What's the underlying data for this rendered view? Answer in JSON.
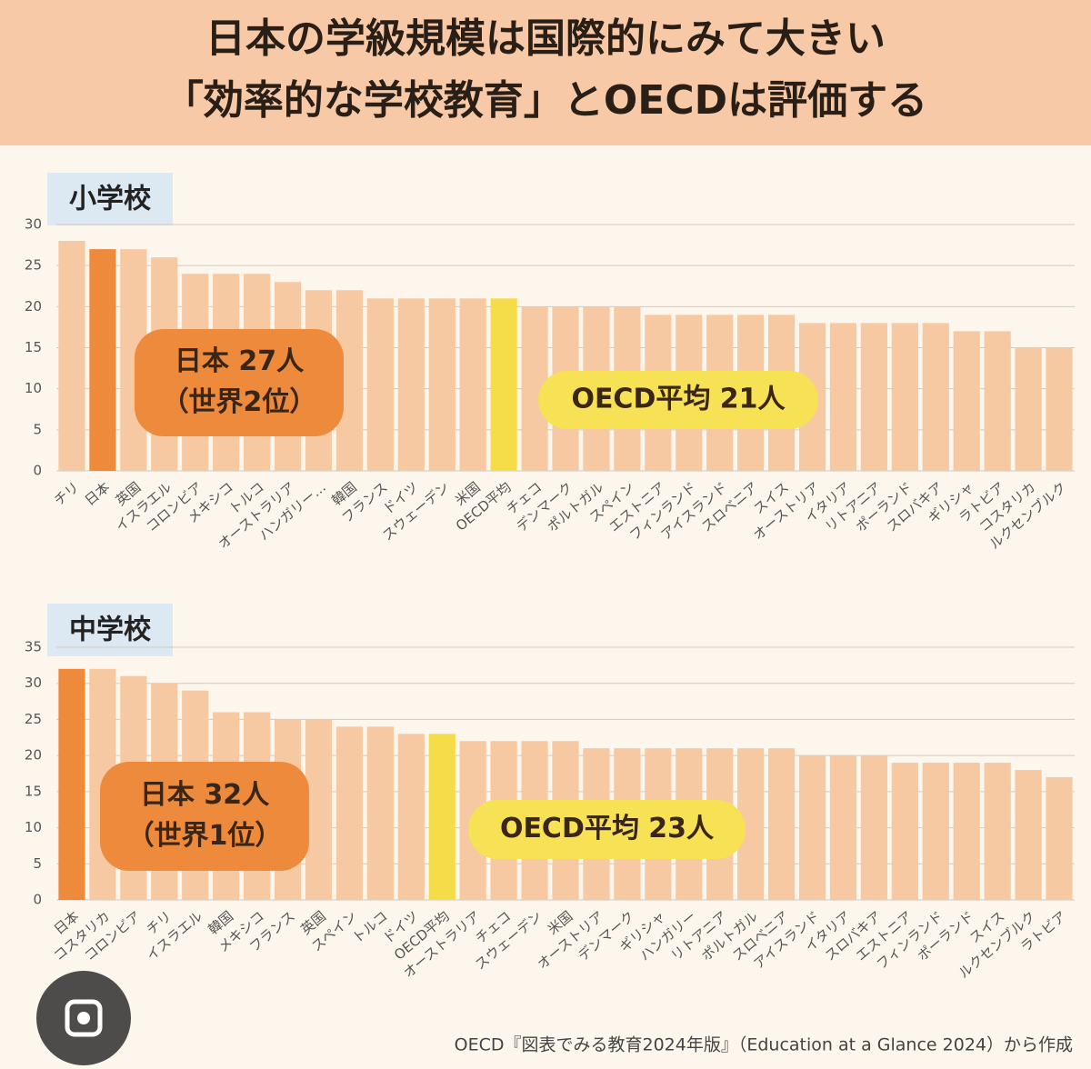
{
  "header": {
    "title_lines": [
      "日本の学級規模は国際的にみて大きい",
      "「効率的な学校教育」とOECDは評価する"
    ]
  },
  "footer": {
    "source": "OECD『図表でみる教育2024年版』（Education at a Glance 2024）から作成"
  },
  "chart_data": [
    {
      "type": "bar",
      "title": "小学校",
      "categories": [
        "チリ",
        "日本",
        "英国",
        "イスラエル",
        "コロンビア",
        "メキシコ",
        "トルコ",
        "オーストラリア",
        "ハンガリー…",
        "韓国",
        "フランス",
        "ドイツ",
        "スウェーデン",
        "米国",
        "OECD平均",
        "チェコ",
        "デンマーク",
        "ポルトガル",
        "スペイン",
        "エストニア",
        "フィンランド",
        "アイスランド",
        "スロベニア",
        "スイス",
        "オーストリア",
        "イタリア",
        "リトアニア",
        "ポーランド",
        "スロバキア",
        "ギリシャ",
        "ラトビア",
        "コスタリカ",
        "ルクセンブルク"
      ],
      "values": [
        28,
        27,
        27,
        26,
        24,
        24,
        24,
        23,
        22,
        22,
        21,
        21,
        21,
        21,
        21,
        20,
        20,
        20,
        20,
        19,
        19,
        19,
        19,
        19,
        18,
        18,
        18,
        18,
        18,
        17,
        17,
        15,
        15
      ],
      "colors": [
        "#f6c9a3",
        "#ee8a3c",
        "#f6c9a3",
        "#f6c9a3",
        "#f6c9a3",
        "#f6c9a3",
        "#f6c9a3",
        "#f6c9a3",
        "#f6c9a3",
        "#f6c9a3",
        "#f6c9a3",
        "#f6c9a3",
        "#f6c9a3",
        "#f6c9a3",
        "#f5dd4a",
        "#f6c9a3",
        "#f6c9a3",
        "#f6c9a3",
        "#f6c9a3",
        "#f6c9a3",
        "#f6c9a3",
        "#f6c9a3",
        "#f6c9a3",
        "#f6c9a3",
        "#f6c9a3",
        "#f6c9a3",
        "#f6c9a3",
        "#f6c9a3",
        "#f6c9a3",
        "#f6c9a3",
        "#f6c9a3",
        "#f6c9a3",
        "#f6c9a3"
      ],
      "ylim": [
        0,
        30
      ],
      "yticks": [
        0,
        5,
        10,
        15,
        20,
        25,
        30
      ],
      "grid": true,
      "annotations": [
        {
          "lines": [
            "日本 27人",
            "（世界2位）"
          ],
          "color": "#ee8a3c"
        },
        {
          "lines": [
            "OECD平均 21人"
          ],
          "color": "#f7e154"
        }
      ]
    },
    {
      "type": "bar",
      "title": "中学校",
      "categories": [
        "日本",
        "コスタリカ",
        "コロンビア",
        "チリ",
        "イスラエル",
        "韓国",
        "メキシコ",
        "フランス",
        "英国",
        "スペイン",
        "トルコ",
        "ドイツ",
        "OECD平均",
        "オーストラリア",
        "チェコ",
        "スウェーデン",
        "米国",
        "オーストリア",
        "デンマーク",
        "ギリシャ",
        "ハンガリー",
        "リトアニア",
        "ポルトガル",
        "スロベニア",
        "アイスランド",
        "イタリア",
        "スロバキア",
        "エストニア",
        "フィンランド",
        "ポーランド",
        "スイス",
        "ルクセンブルク",
        "ラトビア"
      ],
      "values": [
        32,
        32,
        31,
        30,
        29,
        26,
        26,
        25,
        25,
        24,
        24,
        23,
        23,
        22,
        22,
        22,
        22,
        21,
        21,
        21,
        21,
        21,
        21,
        21,
        20,
        20,
        20,
        19,
        19,
        19,
        19,
        18,
        17
      ],
      "colors": [
        "#ee8a3c",
        "#f6c9a3",
        "#f6c9a3",
        "#f6c9a3",
        "#f6c9a3",
        "#f6c9a3",
        "#f6c9a3",
        "#f6c9a3",
        "#f6c9a3",
        "#f6c9a3",
        "#f6c9a3",
        "#f6c9a3",
        "#f5dd4a",
        "#f6c9a3",
        "#f6c9a3",
        "#f6c9a3",
        "#f6c9a3",
        "#f6c9a3",
        "#f6c9a3",
        "#f6c9a3",
        "#f6c9a3",
        "#f6c9a3",
        "#f6c9a3",
        "#f6c9a3",
        "#f6c9a3",
        "#f6c9a3",
        "#f6c9a3",
        "#f6c9a3",
        "#f6c9a3",
        "#f6c9a3",
        "#f6c9a3",
        "#f6c9a3",
        "#f6c9a3"
      ],
      "ylim": [
        0,
        35
      ],
      "yticks": [
        0,
        5,
        10,
        15,
        20,
        25,
        30,
        35
      ],
      "grid": true,
      "annotations": [
        {
          "lines": [
            "日本 32人",
            "（世界1位）"
          ],
          "color": "#ee8a3c"
        },
        {
          "lines": [
            "OECD平均 23人"
          ],
          "color": "#f7e154"
        }
      ]
    }
  ]
}
